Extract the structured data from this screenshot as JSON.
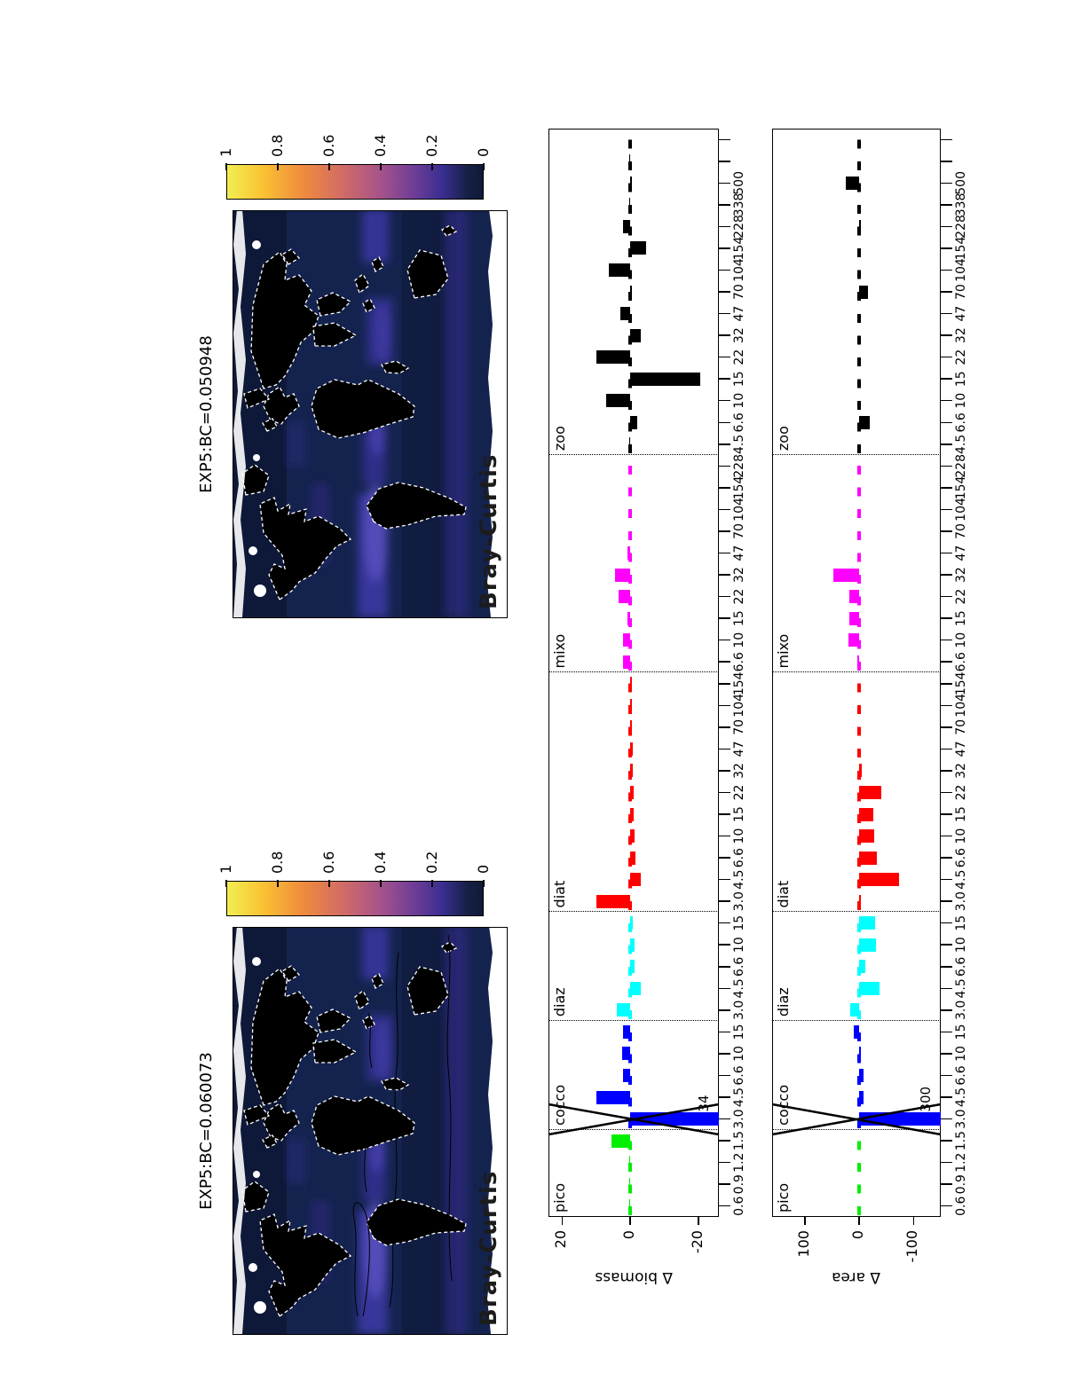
{
  "maps": [
    {
      "title": "EXP5:BC=0.060073",
      "overlay_label": "Bray-Curtis",
      "has_contours": true
    },
    {
      "title": "EXP5:BC=0.050948",
      "overlay_label": "Bray-Curtis",
      "has_contours": false
    }
  ],
  "colorbar": {
    "ticks": [
      "0",
      "0.2",
      "0.4",
      "0.6",
      "0.8",
      "1"
    ]
  },
  "chart_data": [
    {
      "type": "bar",
      "ylabel": "Δ biomass",
      "yticks": [
        20,
        0,
        -20
      ],
      "ylim": [
        -26,
        24
      ],
      "legend_position": "none",
      "grid": false,
      "groups": [
        {
          "name": "pico",
          "color": "#00ee00",
          "sizes": [
            "0.6",
            "0.9",
            "1.2",
            "1.5"
          ],
          "values": [
            0.4,
            0.4,
            0.4,
            5.6
          ]
        },
        {
          "name": "cocco",
          "color": "#0000ff",
          "sizes": [
            "3.0",
            "4.5",
            "6.6",
            "10",
            "15"
          ],
          "values": [
            -34,
            10,
            2,
            2.5,
            2
          ],
          "clip": {
            "index": 0,
            "label": "34"
          }
        },
        {
          "name": "diaz",
          "color": "#00ffff",
          "sizes": [
            "3.0",
            "4.5",
            "6.6",
            "10",
            "15"
          ],
          "values": [
            4,
            -3,
            -1.2,
            -1.2,
            -0.8
          ]
        },
        {
          "name": "diat",
          "color": "#ff0000",
          "sizes": [
            "3.0",
            "4.5",
            "6.6",
            "10",
            "15",
            "22",
            "32",
            "47",
            "70",
            "104",
            "154"
          ],
          "values": [
            10,
            -3,
            -1.5,
            -1.2,
            -1,
            -1,
            -0.8,
            -0.8,
            -0.6,
            -0.6,
            -0.5
          ]
        },
        {
          "name": "mixo",
          "color": "#ff00ff",
          "sizes": [
            "6.6",
            "10",
            "15",
            "22",
            "32",
            "47",
            "70",
            "104",
            "154",
            "228"
          ],
          "values": [
            2,
            2,
            0.8,
            3.5,
            4.5,
            0.8,
            0.3,
            0.3,
            0.3,
            0.3
          ]
        },
        {
          "name": "zoo",
          "color": "#000000",
          "sizes": [
            "4.5",
            "6.6",
            "10",
            "15",
            "22",
            "32",
            "47",
            "70",
            "104",
            "154",
            "228",
            "338",
            "500",
            "",
            ""
          ],
          "values": [
            0.4,
            -2,
            7,
            -20.5,
            10,
            -3.2,
            3,
            -0.6,
            6.4,
            -4.6,
            2,
            0.4,
            -0.4,
            0.4,
            0.3
          ]
        }
      ]
    },
    {
      "type": "bar",
      "ylabel": "Δ area",
      "yticks": [
        100,
        0,
        -100
      ],
      "ylim": [
        -150,
        160
      ],
      "legend_position": "none",
      "grid": false,
      "groups": [
        {
          "name": "pico",
          "color": "#00ee00",
          "sizes": [
            "0.6",
            "0.9",
            "1.2",
            "1.5"
          ],
          "values": [
            0.3,
            0.3,
            0.3,
            0.3
          ]
        },
        {
          "name": "cocco",
          "color": "#0000ff",
          "sizes": [
            "3.0",
            "4.5",
            "6.6",
            "10",
            "15"
          ],
          "values": [
            -300,
            -8,
            -8,
            -3,
            10
          ],
          "clip": {
            "index": 0,
            "label": "300"
          }
        },
        {
          "name": "diaz",
          "color": "#00ffff",
          "sizes": [
            "3.0",
            "4.5",
            "6.6",
            "10",
            "15"
          ],
          "values": [
            16,
            -37,
            -11,
            -31,
            -29
          ]
        },
        {
          "name": "diat",
          "color": "#ff0000",
          "sizes": [
            "3.0",
            "4.5",
            "6.6",
            "10",
            "15",
            "22",
            "32",
            "47",
            "70",
            "104",
            "154"
          ],
          "values": [
            -3,
            -73,
            -32,
            -27,
            -26,
            -40,
            -5,
            -1,
            -1,
            -1,
            -1
          ]
        },
        {
          "name": "mixo",
          "color": "#ff00ff",
          "sizes": [
            "6.6",
            "10",
            "15",
            "22",
            "32",
            "47",
            "70",
            "104",
            "154",
            "228"
          ],
          "values": [
            3,
            20,
            18,
            18,
            48,
            0.5,
            0.5,
            0.5,
            0.5,
            0.5
          ]
        },
        {
          "name": "zoo",
          "color": "#000000",
          "sizes": [
            "4.5",
            "6.6",
            "10",
            "15",
            "22",
            "32",
            "47",
            "70",
            "104",
            "154",
            "228",
            "338",
            "500",
            "",
            ""
          ],
          "values": [
            0.5,
            -19,
            0.4,
            -0.4,
            0.5,
            0.4,
            -2,
            -16,
            -1.5,
            0.4,
            -3,
            -0.6,
            25,
            0.4,
            0.3
          ]
        }
      ]
    }
  ]
}
